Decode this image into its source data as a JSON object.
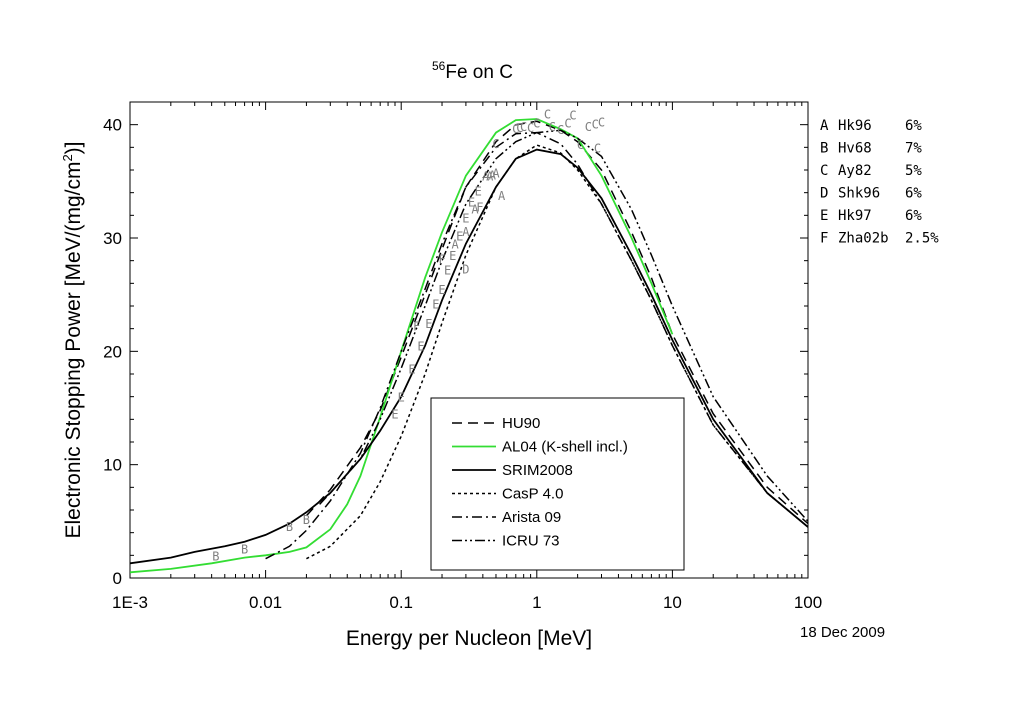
{
  "chart_data": {
    "type": "line",
    "title_superscript": "56",
    "title_main": "Fe on C",
    "xlabel": "Energy per Nucleon [MeV]",
    "ylabel_main": "Electronic Stopping Power [MeV/(mg/cm",
    "ylabel_sup": "2",
    "ylabel_tail": ")]",
    "xscale": "log",
    "xlim": [
      0.001,
      100
    ],
    "ylim": [
      0,
      42
    ],
    "x_ticks": [
      {
        "value": 0.001,
        "label": "1E-3"
      },
      {
        "value": 0.01,
        "label": "0.01"
      },
      {
        "value": 0.1,
        "label": "0.1"
      },
      {
        "value": 1,
        "label": "1"
      },
      {
        "value": 10,
        "label": "10"
      },
      {
        "value": 100,
        "label": "100"
      }
    ],
    "y_ticks": [
      {
        "value": 0,
        "label": "0"
      },
      {
        "value": 10,
        "label": "10"
      },
      {
        "value": 20,
        "label": "20"
      },
      {
        "value": 30,
        "label": "30"
      },
      {
        "value": 40,
        "label": "40"
      }
    ],
    "legend_position": "bottom-center",
    "series": [
      {
        "name": "HU90",
        "color": "#000000",
        "dash": "10,6",
        "width": 1.5,
        "x": [
          0.02,
          0.03,
          0.05,
          0.07,
          0.1,
          0.15,
          0.2,
          0.3,
          0.5,
          0.7,
          1,
          1.5,
          2,
          3,
          5,
          7,
          10,
          20,
          50,
          100
        ],
        "y": [
          5.5,
          7.8,
          11.5,
          14.8,
          19.5,
          25,
          29,
          34.5,
          38.5,
          40,
          40.3,
          39.5,
          38.5,
          36,
          30.5,
          26.5,
          21.5,
          14.5,
          8,
          4.8
        ]
      },
      {
        "name": "AL04 (K-shell incl.)",
        "color": "#33dd33",
        "dash": "",
        "width": 1.8,
        "x": [
          0.001,
          0.002,
          0.004,
          0.007,
          0.01,
          0.015,
          0.02,
          0.03,
          0.04,
          0.05,
          0.07,
          0.1,
          0.15,
          0.2,
          0.3,
          0.5,
          0.7,
          1,
          1.5,
          2,
          3,
          5,
          7,
          10
        ],
        "y": [
          0.5,
          0.8,
          1.3,
          1.8,
          2.0,
          2.3,
          2.7,
          4.3,
          6.5,
          9.0,
          14.2,
          20,
          26.5,
          30.5,
          35.5,
          39.3,
          40.4,
          40.5,
          39.6,
          38.8,
          35.5,
          30,
          26,
          21.5
        ]
      },
      {
        "name": "SRIM2008",
        "color": "#000000",
        "dash": "",
        "width": 1.8,
        "x": [
          0.001,
          0.002,
          0.003,
          0.005,
          0.007,
          0.01,
          0.015,
          0.02,
          0.03,
          0.05,
          0.07,
          0.1,
          0.15,
          0.2,
          0.3,
          0.5,
          0.7,
          1,
          1.5,
          2,
          3,
          5,
          7,
          10,
          20,
          50,
          100
        ],
        "y": [
          1.3,
          1.8,
          2.3,
          2.8,
          3.2,
          3.8,
          4.8,
          5.8,
          7.5,
          10.5,
          13,
          16,
          20.5,
          24.5,
          29.5,
          34.5,
          37,
          37.8,
          37.4,
          36.2,
          33.5,
          28.5,
          25,
          21,
          14,
          7.5,
          4.5
        ]
      },
      {
        "name": "CasP 4.0",
        "color": "#000000",
        "dash": "3,3",
        "width": 1.5,
        "x": [
          0.02,
          0.03,
          0.05,
          0.07,
          0.1,
          0.15,
          0.2,
          0.3,
          0.5,
          0.7,
          1,
          1.5,
          2,
          3,
          5,
          7,
          10,
          20,
          50,
          100
        ],
        "y": [
          1.7,
          2.8,
          5.5,
          8.5,
          12.5,
          18,
          22.5,
          28.5,
          34.5,
          37,
          38.2,
          37.5,
          36,
          33,
          28,
          24.5,
          20.5,
          13.5,
          7.5,
          4.5
        ]
      },
      {
        "name": "Arista 09",
        "color": "#000000",
        "dash": "10,4,2,4",
        "width": 1.5,
        "x": [
          0.01,
          0.015,
          0.02,
          0.03,
          0.05,
          0.07,
          0.1,
          0.15,
          0.2,
          0.3,
          0.5,
          0.7,
          1,
          1.5,
          2,
          3,
          5,
          7,
          10,
          20,
          50,
          100
        ],
        "y": [
          1.7,
          2.8,
          4.2,
          6.8,
          11,
          15,
          20,
          25.5,
          29.5,
          34.5,
          38,
          39.2,
          39.3,
          38.3,
          36.5,
          33,
          28,
          24.5,
          20.5,
          13.5,
          7.5,
          4.5
        ]
      },
      {
        "name": "ICRU 73",
        "color": "#000000",
        "dash": "10,3,2,3,2,3",
        "width": 1.5,
        "x": [
          0.025,
          0.03,
          0.05,
          0.07,
          0.1,
          0.15,
          0.2,
          0.3,
          0.5,
          0.7,
          1,
          1.5,
          2,
          3,
          5,
          7,
          10,
          20,
          50,
          100
        ],
        "y": [
          6.5,
          7.5,
          10.5,
          14,
          18.5,
          24,
          28,
          33,
          37,
          38.5,
          39.3,
          39.5,
          38.8,
          37.2,
          32.5,
          28.5,
          24,
          16,
          9,
          5
        ]
      }
    ],
    "data_points": [
      {
        "label": "A",
        "x": 0.42,
        "y": 35.5
      },
      {
        "label": "A",
        "x": 0.45,
        "y": 35.5
      },
      {
        "label": "A",
        "x": 0.47,
        "y": 35.6
      },
      {
        "label": "A",
        "x": 0.5,
        "y": 35.8
      },
      {
        "label": "A",
        "x": 0.55,
        "y": 33.8
      },
      {
        "label": "A",
        "x": 0.35,
        "y": 32.6
      },
      {
        "label": "A",
        "x": 0.3,
        "y": 30.6
      },
      {
        "label": "A",
        "x": 0.25,
        "y": 29.5
      },
      {
        "label": "B",
        "x": 0.0043,
        "y": 2.0
      },
      {
        "label": "B",
        "x": 0.007,
        "y": 2.6
      },
      {
        "label": "B",
        "x": 0.015,
        "y": 4.6
      },
      {
        "label": "B",
        "x": 0.02,
        "y": 5.2
      },
      {
        "label": "C",
        "x": 0.5,
        "y": 38.4
      },
      {
        "label": "C",
        "x": 0.7,
        "y": 39.7
      },
      {
        "label": "C",
        "x": 0.75,
        "y": 39.8
      },
      {
        "label": "C",
        "x": 0.8,
        "y": 39.9
      },
      {
        "label": "C",
        "x": 0.9,
        "y": 39.8
      },
      {
        "label": "C",
        "x": 1.0,
        "y": 40.2
      },
      {
        "label": "C",
        "x": 1.2,
        "y": 41.0
      },
      {
        "label": "C",
        "x": 1.3,
        "y": 39.9
      },
      {
        "label": "C",
        "x": 1.5,
        "y": 39.6
      },
      {
        "label": "C",
        "x": 1.7,
        "y": 40.2
      },
      {
        "label": "C",
        "x": 1.85,
        "y": 40.9
      },
      {
        "label": "C",
        "x": 2.1,
        "y": 38.3
      },
      {
        "label": "C",
        "x": 2.4,
        "y": 39.9
      },
      {
        "label": "C",
        "x": 2.7,
        "y": 40.1
      },
      {
        "label": "C",
        "x": 3.0,
        "y": 40.3
      },
      {
        "label": "C",
        "x": 2.8,
        "y": 38.0
      },
      {
        "label": "D",
        "x": 0.3,
        "y": 27.3
      },
      {
        "label": "E",
        "x": 0.09,
        "y": 14.5
      },
      {
        "label": "E",
        "x": 0.1,
        "y": 16.0
      },
      {
        "label": "E",
        "x": 0.12,
        "y": 18.5
      },
      {
        "label": "E",
        "x": 0.14,
        "y": 20.5
      },
      {
        "label": "E",
        "x": 0.16,
        "y": 22.5
      },
      {
        "label": "E",
        "x": 0.18,
        "y": 24.2
      },
      {
        "label": "E",
        "x": 0.2,
        "y": 25.5
      },
      {
        "label": "E",
        "x": 0.22,
        "y": 27.2
      },
      {
        "label": "E",
        "x": 0.24,
        "y": 28.5
      },
      {
        "label": "E",
        "x": 0.27,
        "y": 30.2
      },
      {
        "label": "E",
        "x": 0.3,
        "y": 31.8
      },
      {
        "label": "E",
        "x": 0.33,
        "y": 33.2
      },
      {
        "label": "E",
        "x": 0.37,
        "y": 34.2
      },
      {
        "label": "F",
        "x": 0.13,
        "y": 22.3
      },
      {
        "label": "F",
        "x": 0.2,
        "y": 28.2
      },
      {
        "label": "F",
        "x": 0.38,
        "y": 32.8
      }
    ],
    "references": [
      {
        "key": "A",
        "name": "Hk96",
        "error": "6%"
      },
      {
        "key": "B",
        "name": "Hv68",
        "error": "7%"
      },
      {
        "key": "C",
        "name": "Ay82",
        "error": "5%"
      },
      {
        "key": "D",
        "name": "Shk96",
        "error": "6%"
      },
      {
        "key": "E",
        "name": "Hk97",
        "error": "6%"
      },
      {
        "key": "F",
        "name": "Zha02b",
        "error": "2.5%"
      }
    ],
    "date": "18 Dec 2009"
  }
}
